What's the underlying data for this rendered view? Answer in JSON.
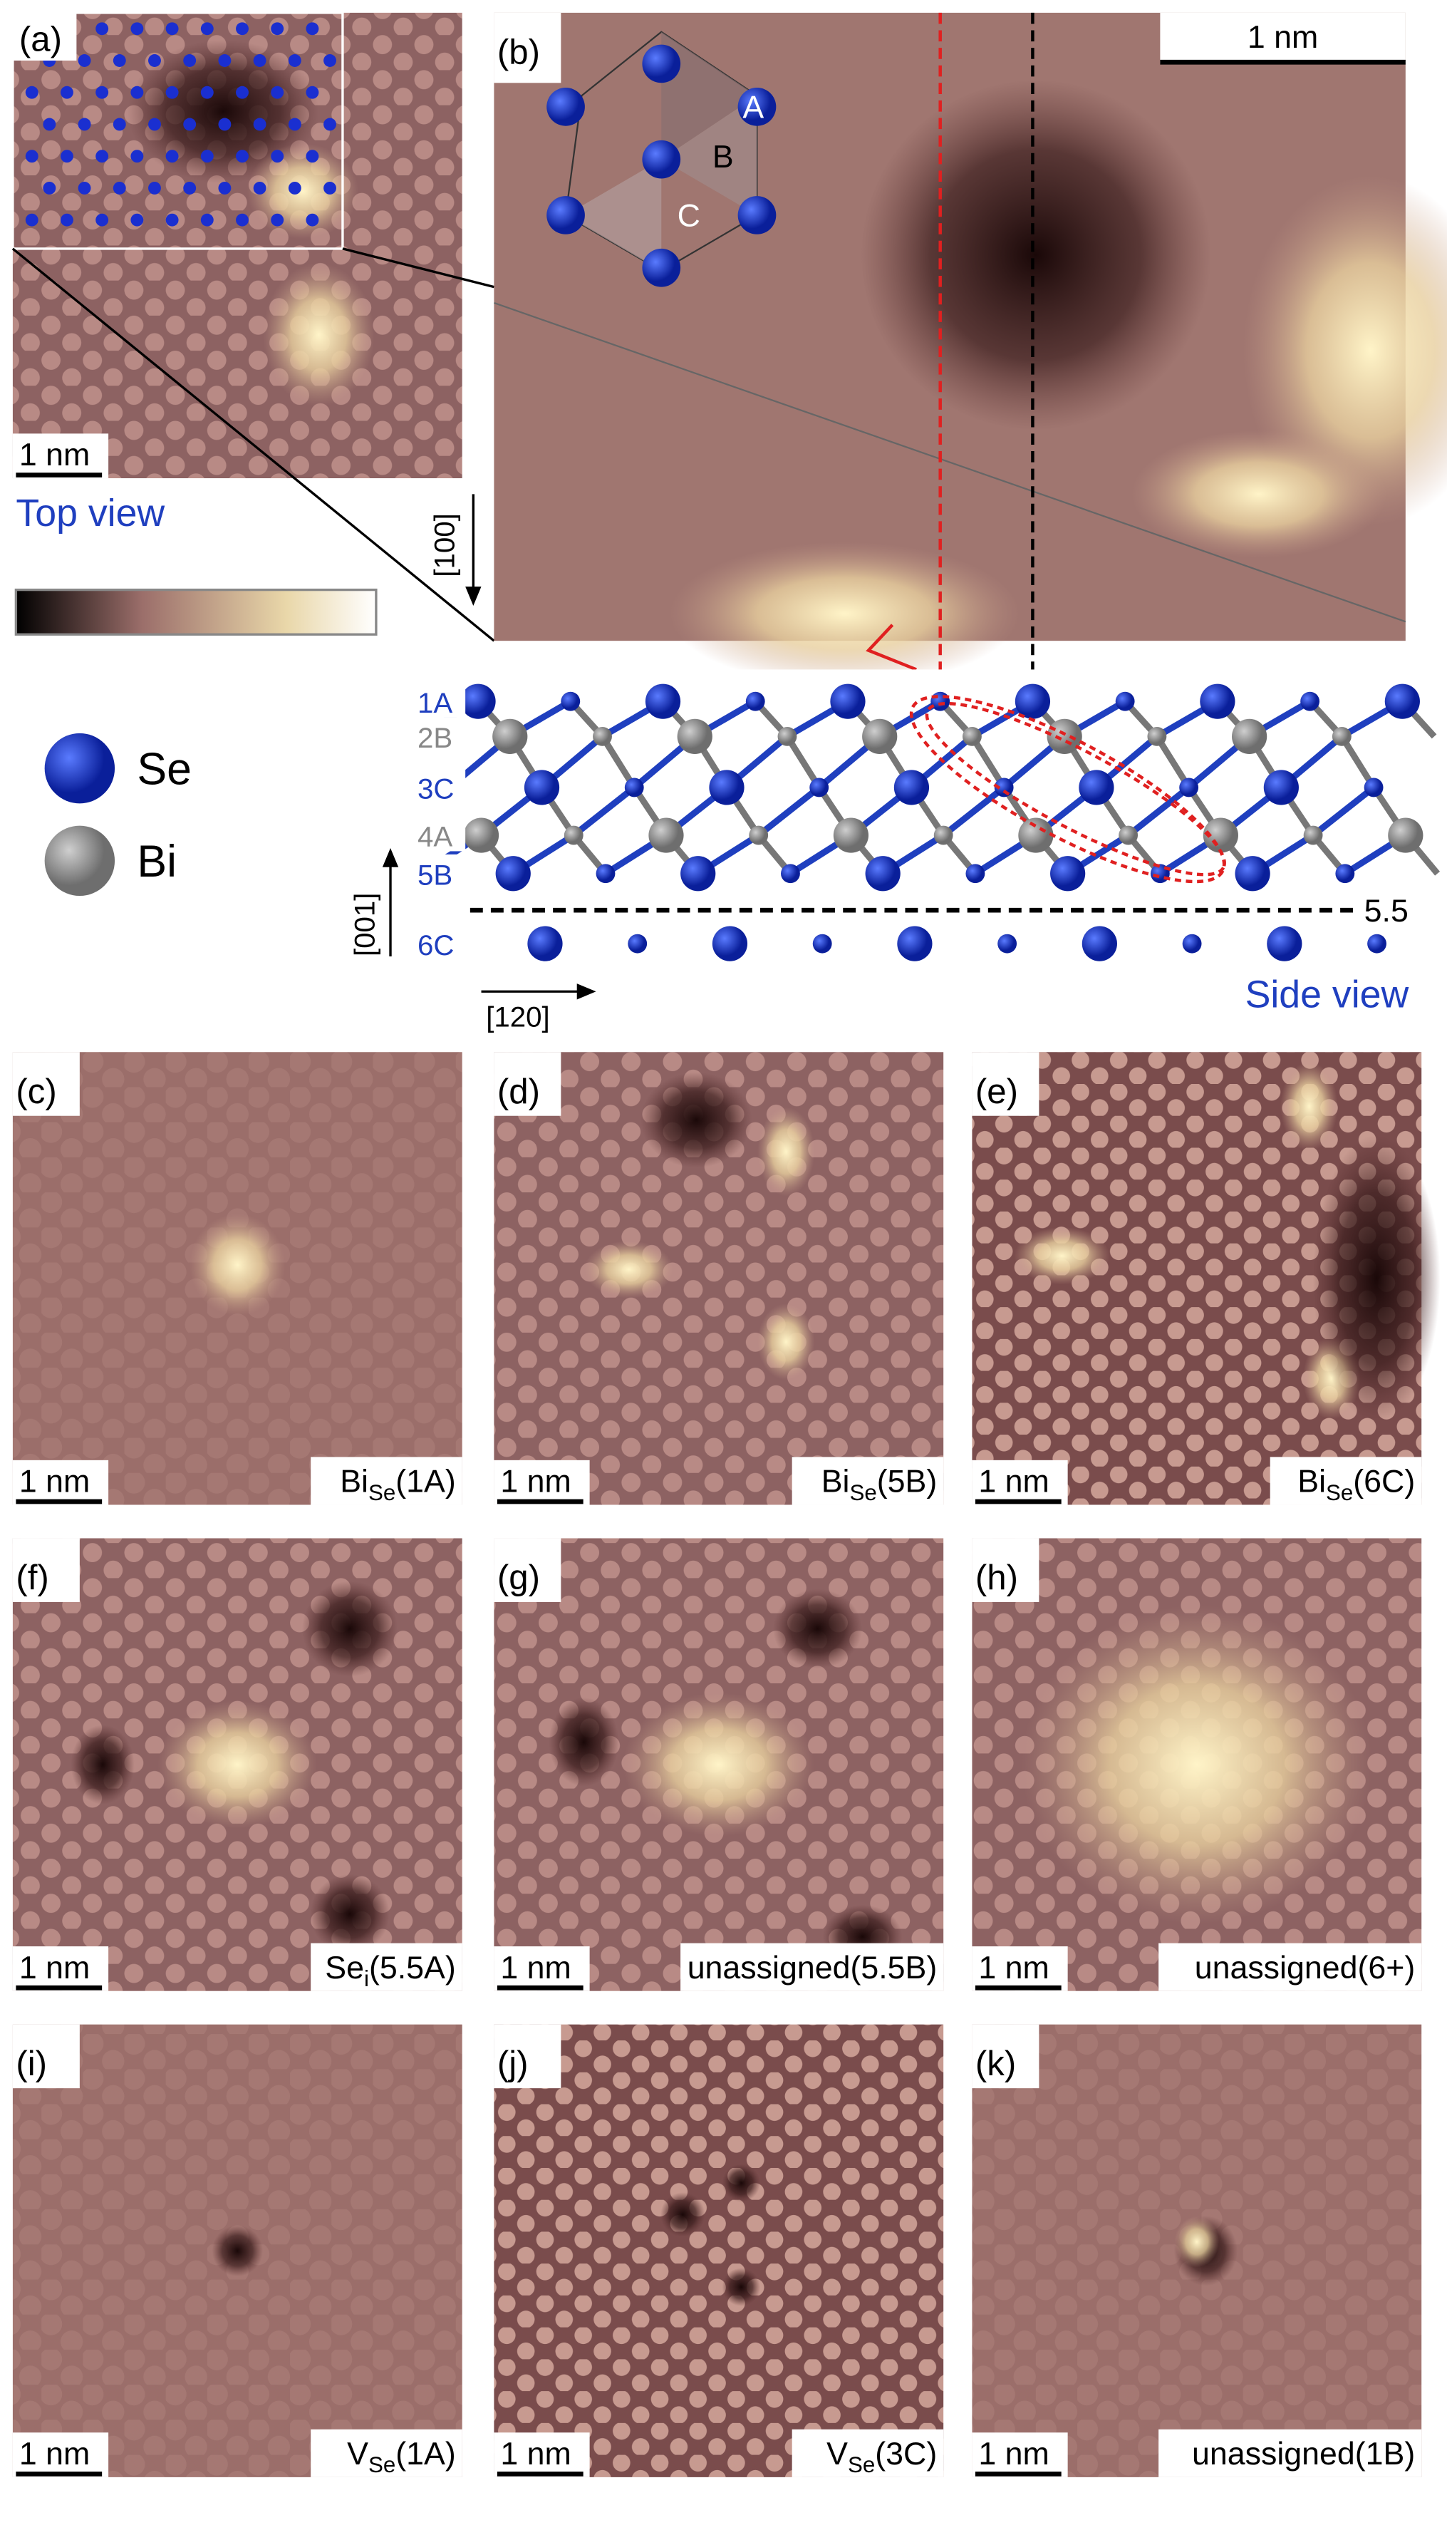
{
  "top_panel_a": {
    "label": "(a)",
    "scale_bar": "1 nm",
    "caption": "Top view"
  },
  "top_panel_b": {
    "label": "(b)",
    "scale_bar": "1 nm",
    "direction": "[100]",
    "sublattice": [
      "A",
      "B",
      "C"
    ]
  },
  "legend": [
    {
      "label": "Se"
    },
    {
      "label": "Bi"
    }
  ],
  "side_view": {
    "layers": [
      "1A",
      "2B",
      "3C",
      "4A",
      "5B",
      "6C"
    ],
    "cut_label": "5.5",
    "dir_vertical": "[001]",
    "dir_horizontal": "[120]",
    "title": "Side view"
  },
  "defects": [
    {
      "label": "(c)",
      "scale_bar": "1 nm",
      "caption": {
        "base": "Bi",
        "sub": "Se",
        "site": "(1A)"
      }
    },
    {
      "label": "(d)",
      "scale_bar": "1 nm",
      "caption": {
        "base": "Bi",
        "sub": "Se",
        "site": "(5B)"
      }
    },
    {
      "label": "(e)",
      "scale_bar": "1 nm",
      "caption": {
        "base": "Bi",
        "sub": "Se",
        "site": "(6C)"
      }
    },
    {
      "label": "(f)",
      "scale_bar": "1 nm",
      "caption": {
        "base": "Se",
        "sub": "i",
        "site": "(5.5A)"
      }
    },
    {
      "label": "(g)",
      "scale_bar": "1 nm",
      "caption": {
        "base": "unassigned(5.5B)"
      }
    },
    {
      "label": "(h)",
      "scale_bar": "1 nm",
      "caption": {
        "base": "unassigned(6+)"
      }
    },
    {
      "label": "(i)",
      "scale_bar": "1 nm",
      "caption": {
        "base": "V",
        "sub": "Se",
        "site": "(1A)"
      }
    },
    {
      "label": "(j)",
      "scale_bar": "1 nm",
      "caption": {
        "base": "V",
        "sub": "Se",
        "site": "(3C)"
      }
    },
    {
      "label": "(k)",
      "scale_bar": "1 nm",
      "caption": {
        "base": "unassigned(1B)"
      }
    }
  ]
}
